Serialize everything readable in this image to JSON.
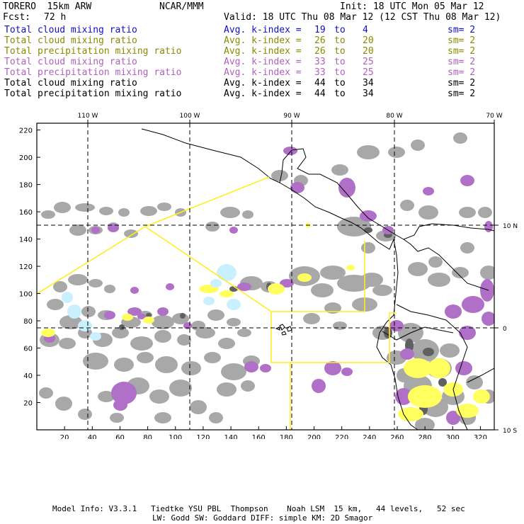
{
  "header": {
    "model": "TORERO  15km ARW",
    "org": "NCAR/MMM",
    "init": "Init: 18 UTC Mon 05 Mar 12",
    "fcst_label": "Fcst:",
    "fcst_value": "72 h",
    "valid": "Valid: 18 UTC Thu 08 Mar 12 (12 CST Thu 08 Mar 12)"
  },
  "legend": [
    {
      "field": "Total cloud mixing ratio",
      "kindex": "Avg. k-index =",
      "from": "19",
      "to_word": "to",
      "to": "4",
      "sm": "sm= 2",
      "color": "#1010c0"
    },
    {
      "field": "Total cloud mixing ratio",
      "kindex": "Avg. k-index =",
      "from": "26",
      "to_word": "to",
      "to": "20",
      "sm": "sm= 2",
      "color": "#8a8a00"
    },
    {
      "field": "Total precipitation mixing ratio",
      "kindex": "Avg. k-index =",
      "from": "26",
      "to_word": "to",
      "to": "20",
      "sm": "sm= 2",
      "color": "#8a8a00"
    },
    {
      "field": "Total cloud mixing ratio",
      "kindex": "Avg. k-index =",
      "from": "33",
      "to_word": "to",
      "to": "25",
      "sm": "sm= 2",
      "color": "#b060c0"
    },
    {
      "field": "Total precipitation mixing ratio",
      "kindex": "Avg. k-index =",
      "from": "33",
      "to_word": "to",
      "to": "25",
      "sm": "sm= 2",
      "color": "#b060c0"
    },
    {
      "field": "Total cloud mixing ratio",
      "kindex": "Avg. k-index =",
      "from": "44",
      "to_word": "to",
      "to": "34",
      "sm": "sm= 2",
      "color": "#000000"
    },
    {
      "field": "Total precipitation mixing ratio",
      "kindex": "Avg. k-index =",
      "from": "44",
      "to_word": "to",
      "to": "34",
      "sm": "sm= 2",
      "color": "#000000"
    }
  ],
  "map": {
    "lon_labels": [
      "110 W",
      "100 W",
      "90 W",
      "80 W",
      "70 W"
    ],
    "lat_labels": [
      "10 N",
      "0",
      "10 S"
    ],
    "x_ticks": [
      "20",
      "40",
      "60",
      "80",
      "100",
      "120",
      "140",
      "160",
      "180",
      "200",
      "220",
      "240",
      "260",
      "280",
      "300",
      "320"
    ],
    "y_ticks": [
      "20",
      "40",
      "60",
      "80",
      "100",
      "120",
      "140",
      "160",
      "180",
      "200",
      "220"
    ],
    "colors": {
      "gray": "#a8a8a8",
      "darkgray": "#606060",
      "purple": "#b070c8",
      "yellow": "#ffff60",
      "cyan": "#c8f0ff",
      "domain": "#ffee22"
    }
  },
  "footer": {
    "line1": "Model Info: V3.3.1   Tiedtke YSU PBL  Thompson    Noah LSM  15 km,   44 levels,   52 sec",
    "line2": "LW: Godd SW: Goddard DIFF: simple KM: 2D Smagor"
  }
}
